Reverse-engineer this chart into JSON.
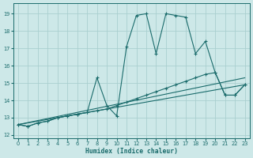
{
  "xlabel": "Humidex (Indice chaleur)",
  "bg_color": "#cde8e8",
  "grid_color": "#aacfcf",
  "line_color": "#1a6b6b",
  "xlim": [
    -0.5,
    23.5
  ],
  "ylim": [
    11.8,
    19.6
  ],
  "yticks": [
    12,
    13,
    14,
    15,
    16,
    17,
    18,
    19
  ],
  "xticks": [
    0,
    1,
    2,
    3,
    4,
    5,
    6,
    7,
    8,
    9,
    10,
    11,
    12,
    13,
    14,
    15,
    16,
    17,
    18,
    19,
    20,
    21,
    22,
    23
  ],
  "line1_x": [
    0,
    1,
    2,
    3,
    4,
    5,
    6,
    7,
    8,
    9,
    10,
    11,
    12,
    13,
    14,
    15,
    16,
    17,
    18,
    19,
    20,
    21,
    22,
    23
  ],
  "line1_y": [
    12.6,
    12.5,
    12.7,
    12.8,
    13.0,
    13.1,
    13.2,
    13.3,
    15.3,
    13.7,
    13.1,
    17.1,
    18.9,
    19.0,
    16.7,
    19.0,
    18.9,
    18.8,
    16.7,
    17.4,
    15.6,
    14.3,
    14.3,
    14.9
  ],
  "line2_x": [
    0,
    1,
    2,
    3,
    4,
    5,
    6,
    7,
    8,
    9,
    10,
    11,
    12,
    13,
    14,
    15,
    16,
    17,
    18,
    19,
    20,
    21,
    22,
    23
  ],
  "line2_y": [
    12.6,
    12.5,
    12.7,
    12.8,
    13.0,
    13.1,
    13.2,
    13.3,
    13.4,
    13.5,
    13.7,
    13.9,
    14.1,
    14.3,
    14.5,
    14.7,
    14.9,
    15.1,
    15.3,
    15.5,
    15.6,
    14.3,
    14.3,
    14.9
  ],
  "line3_x": [
    0,
    23
  ],
  "line3_y": [
    12.6,
    15.3
  ],
  "line4_x": [
    0,
    23
  ],
  "line4_y": [
    12.6,
    14.9
  ]
}
